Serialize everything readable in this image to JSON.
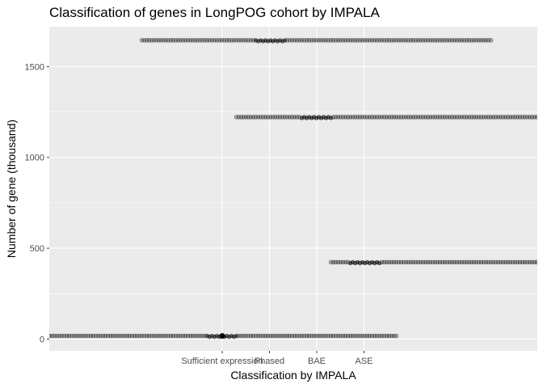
{
  "chart_data": {
    "type": "scatter",
    "title": "Classification of genes in LongPOG cohort by IMPALA",
    "xlabel": "Classification by IMPALA",
    "ylabel": "Number of gene (thousand)",
    "categories": [
      "Sufficient expression",
      "Phased",
      "BAE",
      "ASE"
    ],
    "yticks": [
      0,
      500,
      1000,
      1500
    ],
    "ylim": [
      -65,
      1720
    ],
    "grid": true,
    "colors": {
      "panel": "#ebebeb",
      "grid": "#ffffff",
      "point": "#000000"
    },
    "series": [
      {
        "category": "Sufficient expression",
        "y": 17,
        "x_min": -3.7,
        "x_max": 3.7
      },
      {
        "category": "Phased",
        "y": 1645,
        "x_min": -2.7,
        "x_max": 4.7
      },
      {
        "category": "BAE",
        "y": 1222,
        "x_min": -1.7,
        "x_max": 5.7
      },
      {
        "category": "ASE",
        "y": 423,
        "x_min": -0.7,
        "x_max": 6.7
      }
    ]
  }
}
